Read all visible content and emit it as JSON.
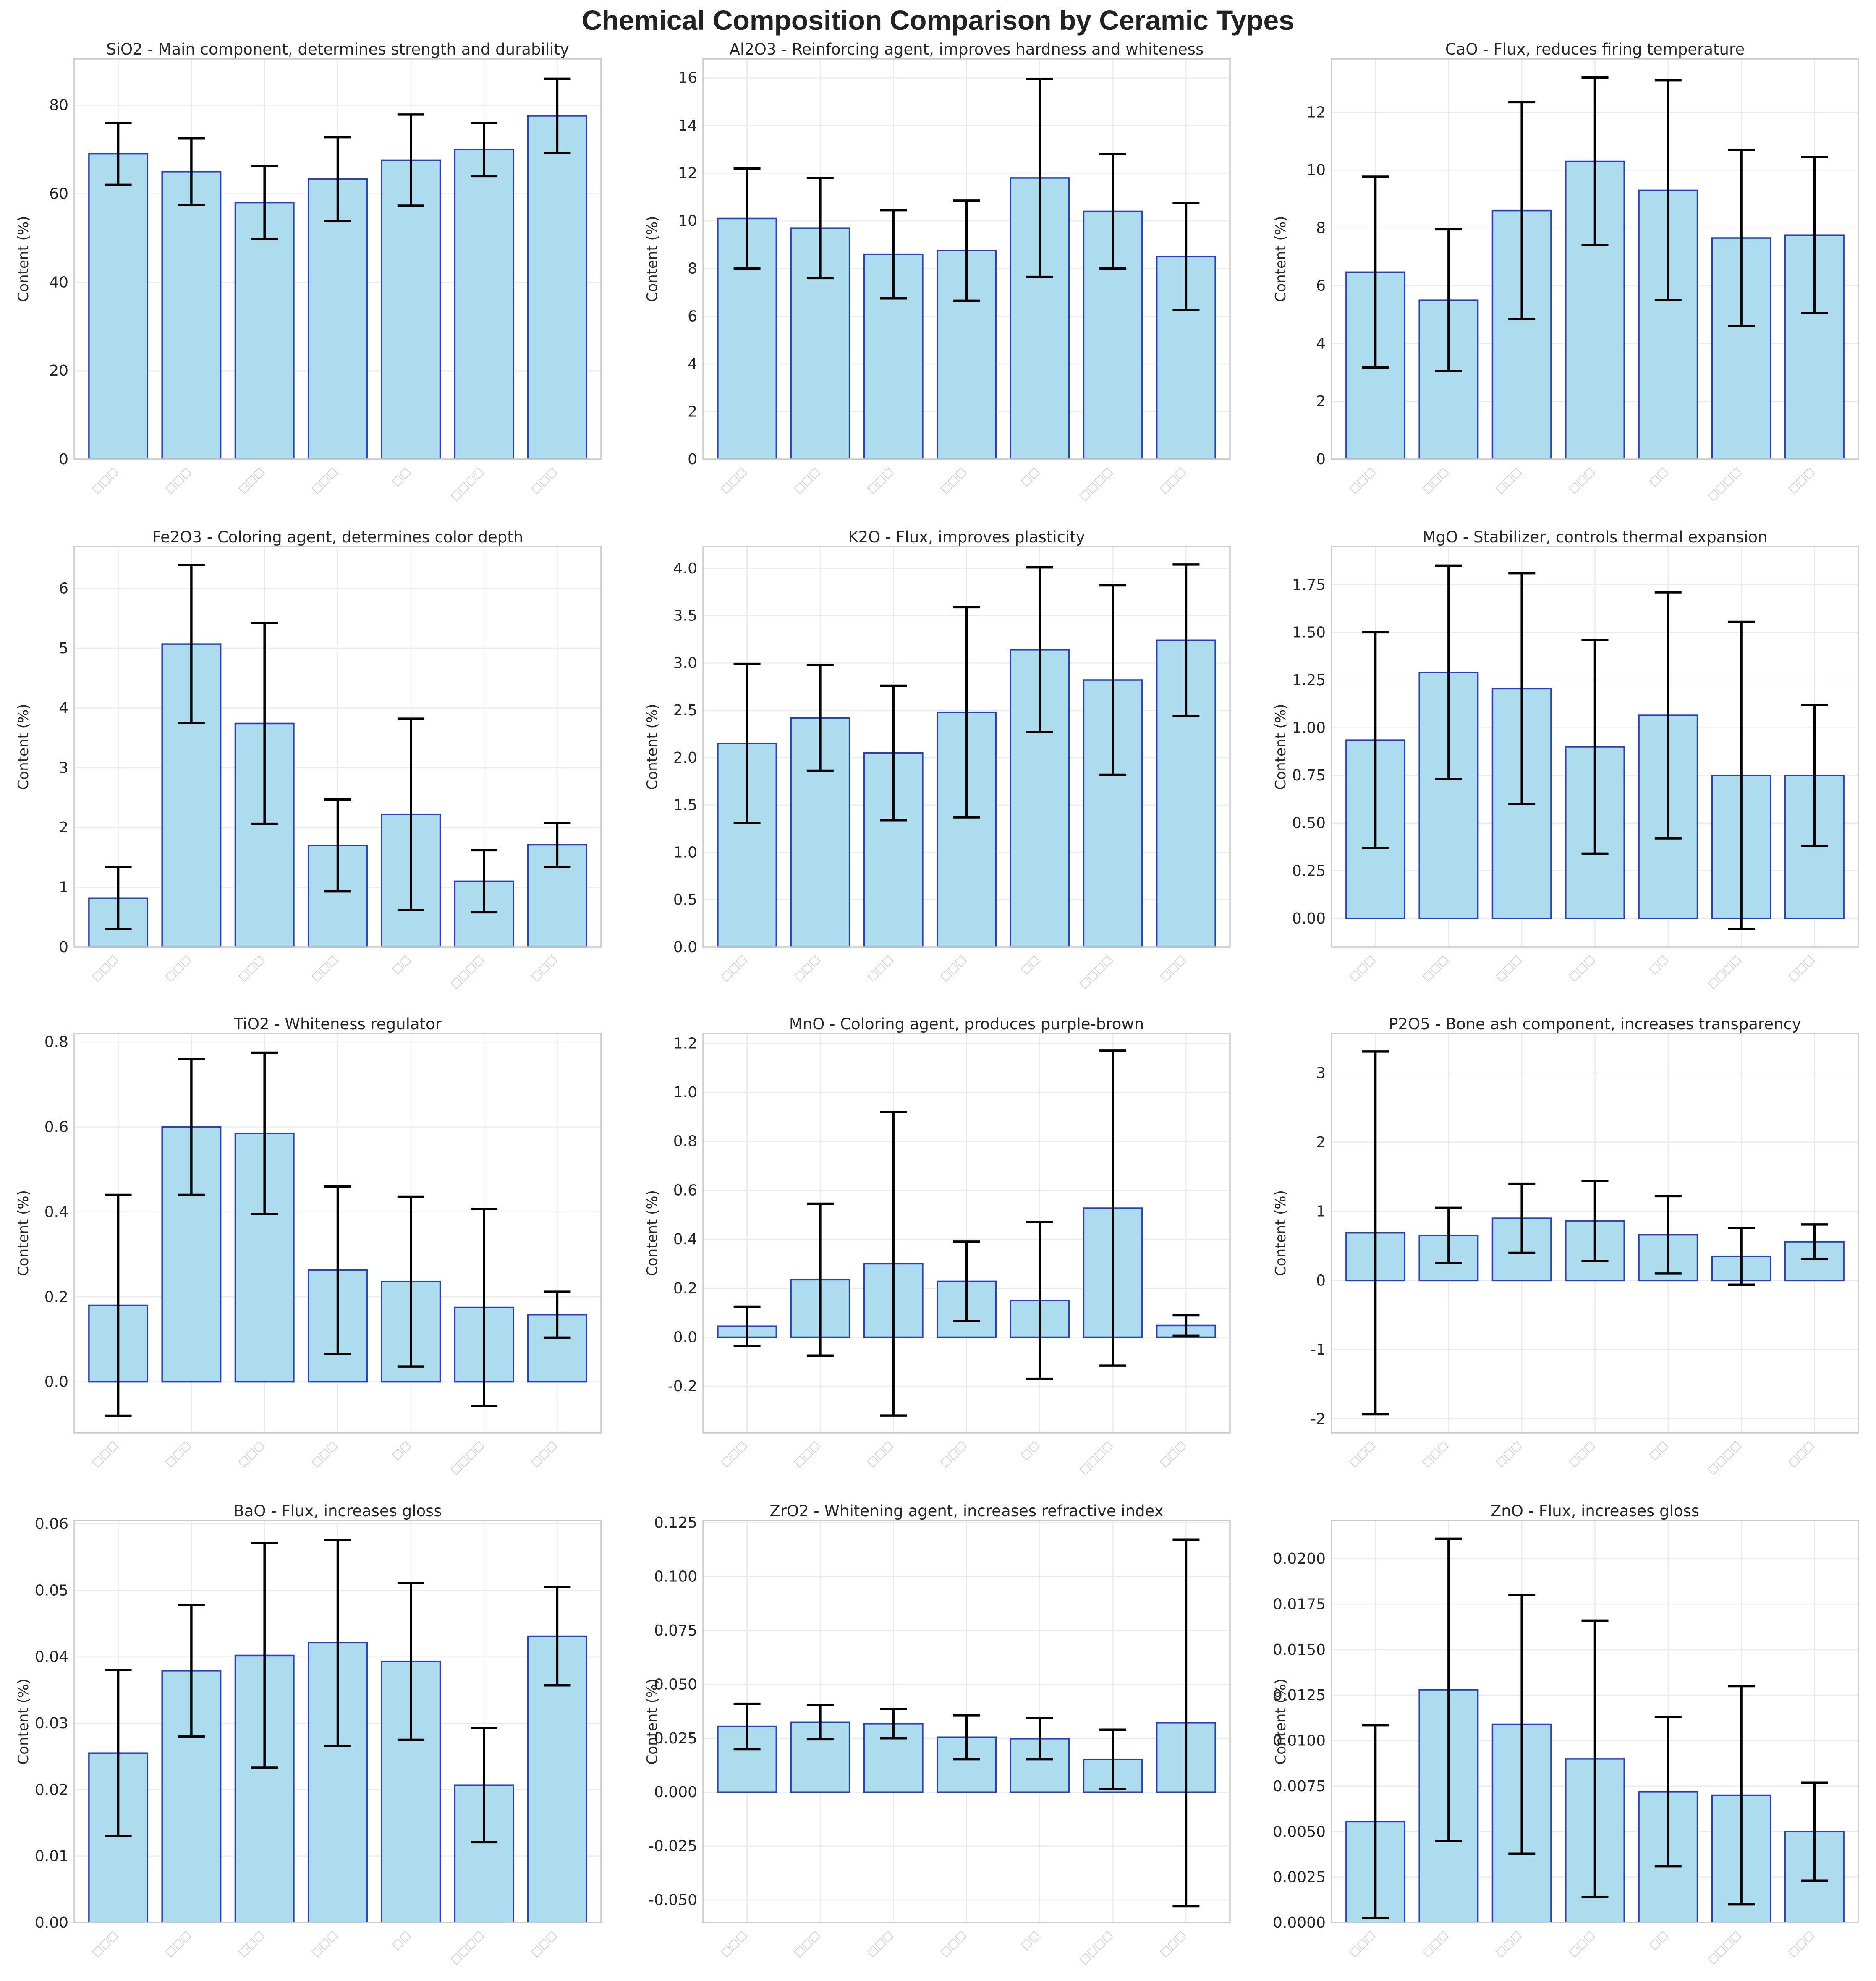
{
  "figure": {
    "title": "Chemical Composition Comparison by Ceramic Types",
    "bar_fill": "#ADDCEF",
    "bar_edge": "#2B3FB8",
    "error_color": "#000000",
    "grid_color": "#EBEBEB",
    "frame_color": "#CCCCCC"
  },
  "chart_data": [
    {
      "type": "bar",
      "title": "SiO2 - Main component, determines strength and durability",
      "ylabel": "Content (%)",
      "categories": [
        "□□□",
        "□□□",
        "□□□",
        "□□□",
        "□□",
        "□□□□",
        "□□□"
      ],
      "ylim": [
        0,
        90.5
      ],
      "yticks": [
        0,
        20,
        40,
        60,
        80
      ],
      "ytick_labels": [
        "0",
        "20",
        "40",
        "60",
        "80"
      ],
      "values": [
        69.0,
        65.0,
        58.0,
        63.3,
        67.6,
        70.0,
        77.6
      ],
      "errors": [
        7.0,
        7.5,
        8.2,
        9.5,
        10.3,
        6.0,
        8.4
      ]
    },
    {
      "type": "bar",
      "title": "Al2O3 - Reinforcing agent, improves hardness and whiteness",
      "ylabel": "Content (%)",
      "categories": [
        "□□□",
        "□□□",
        "□□□",
        "□□□",
        "□□",
        "□□□□",
        "□□□"
      ],
      "ylim": [
        0,
        16.8
      ],
      "yticks": [
        0,
        2,
        4,
        6,
        8,
        10,
        12,
        14,
        16
      ],
      "ytick_labels": [
        "0",
        "2",
        "4",
        "6",
        "8",
        "10",
        "12",
        "14",
        "16"
      ],
      "values": [
        10.1,
        9.7,
        8.6,
        8.75,
        11.8,
        10.4,
        8.5
      ],
      "errors": [
        2.1,
        2.1,
        1.85,
        2.1,
        4.15,
        2.4,
        2.25
      ]
    },
    {
      "type": "bar",
      "title": "CaO - Flux, reduces firing temperature",
      "ylabel": "Content (%)",
      "categories": [
        "□□□",
        "□□□",
        "□□□",
        "□□□",
        "□□",
        "□□□□",
        "□□□"
      ],
      "ylim": [
        0,
        13.85
      ],
      "yticks": [
        0,
        2,
        4,
        6,
        8,
        10,
        12
      ],
      "ytick_labels": [
        "0",
        "2",
        "4",
        "6",
        "8",
        "10",
        "12"
      ],
      "values": [
        6.47,
        5.5,
        8.6,
        10.3,
        9.3,
        7.65,
        7.75
      ],
      "errors": [
        3.3,
        2.45,
        3.75,
        2.9,
        3.8,
        3.05,
        2.7
      ]
    },
    {
      "type": "bar",
      "title": "Fe2O3 - Coloring agent, determines color depth",
      "ylabel": "Content (%)",
      "categories": [
        "□□□",
        "□□□",
        "□□□",
        "□□□",
        "□□",
        "□□□□",
        "□□□"
      ],
      "ylim": [
        0,
        6.7
      ],
      "yticks": [
        0,
        1,
        2,
        3,
        4,
        5,
        6
      ],
      "ytick_labels": [
        "0",
        "1",
        "2",
        "3",
        "4",
        "5",
        "6"
      ],
      "values": [
        0.82,
        5.07,
        3.74,
        1.7,
        2.22,
        1.1,
        1.71
      ],
      "errors": [
        0.52,
        1.32,
        1.68,
        0.77,
        1.6,
        0.52,
        0.37
      ]
    },
    {
      "type": "bar",
      "title": "K2O - Flux, improves plasticity",
      "ylabel": "Content (%)",
      "categories": [
        "□□□",
        "□□□",
        "□□□",
        "□□□",
        "□□",
        "□□□□",
        "□□□"
      ],
      "ylim": [
        0,
        4.23
      ],
      "yticks": [
        0,
        0.5,
        1,
        1.5,
        2,
        2.5,
        3,
        3.5,
        4
      ],
      "ytick_labels": [
        "0.0",
        "0.5",
        "1.0",
        "1.5",
        "2.0",
        "2.5",
        "3.0",
        "3.5",
        "4.0"
      ],
      "values": [
        2.15,
        2.42,
        2.05,
        2.48,
        3.14,
        2.82,
        3.24
      ],
      "errors": [
        0.84,
        0.56,
        0.71,
        1.11,
        0.87,
        1.0,
        0.8
      ]
    },
    {
      "type": "bar",
      "title": "MgO - Stabilizer, controls thermal expansion",
      "ylabel": "Content (%)",
      "categories": [
        "□□□",
        "□□□",
        "□□□",
        "□□□",
        "□□",
        "□□□□",
        "□□□"
      ],
      "ylim": [
        -0.15,
        1.95
      ],
      "yticks": [
        0,
        0.25,
        0.5,
        0.75,
        1,
        1.25,
        1.5,
        1.75
      ],
      "ytick_labels": [
        "0.00",
        "0.25",
        "0.50",
        "0.75",
        "1.00",
        "1.25",
        "1.50",
        "1.75"
      ],
      "values": [
        0.935,
        1.29,
        1.205,
        0.9,
        1.065,
        0.75,
        0.75
      ],
      "errors": [
        0.565,
        0.56,
        0.605,
        0.56,
        0.645,
        0.805,
        0.37
      ]
    },
    {
      "type": "bar",
      "title": "TiO2 - Whiteness regulator",
      "ylabel": "Content (%)",
      "categories": [
        "□□□",
        "□□□",
        "□□□",
        "□□□",
        "□□",
        "□□□□",
        "□□□"
      ],
      "ylim": [
        -0.12,
        0.82
      ],
      "yticks": [
        0,
        0.2,
        0.4,
        0.6,
        0.8
      ],
      "ytick_labels": [
        "0.0",
        "0.2",
        "0.4",
        "0.6",
        "0.8"
      ],
      "values": [
        0.18,
        0.6,
        0.585,
        0.263,
        0.236,
        0.175,
        0.158
      ],
      "errors": [
        0.26,
        0.16,
        0.19,
        0.197,
        0.2,
        0.232,
        0.054
      ]
    },
    {
      "type": "bar",
      "title": "MnO - Coloring agent, produces purple-brown",
      "ylabel": "Content (%)",
      "categories": [
        "□□□",
        "□□□",
        "□□□",
        "□□□",
        "□□",
        "□□□□",
        "□□□"
      ],
      "ylim": [
        -0.39,
        1.24
      ],
      "yticks": [
        -0.2,
        0,
        0.2,
        0.4,
        0.6,
        0.8,
        1.0,
        1.2
      ],
      "ytick_labels": [
        "-0.2",
        "0.0",
        "0.2",
        "0.4",
        "0.6",
        "0.8",
        "1.0",
        "1.2"
      ],
      "values": [
        0.045,
        0.235,
        0.3,
        0.228,
        0.15,
        0.527,
        0.048
      ],
      "errors": [
        0.08,
        0.31,
        0.62,
        0.162,
        0.32,
        0.643,
        0.041
      ]
    },
    {
      "type": "bar",
      "title": "P2O5 - Bone ash component, increases transparency",
      "ylabel": "Content (%)",
      "categories": [
        "□□□",
        "□□□",
        "□□□",
        "□□□",
        "□□",
        "□□□□",
        "□□□"
      ],
      "ylim": [
        -2.2,
        3.57
      ],
      "yticks": [
        -2,
        -1,
        0,
        1,
        2,
        3
      ],
      "ytick_labels": [
        "-2",
        "-1",
        "0",
        "1",
        "2",
        "3"
      ],
      "values": [
        0.69,
        0.65,
        0.9,
        0.86,
        0.66,
        0.35,
        0.56
      ],
      "errors": [
        2.62,
        0.4,
        0.5,
        0.58,
        0.56,
        0.41,
        0.25
      ]
    },
    {
      "type": "bar",
      "title": "BaO - Flux, increases gloss",
      "ylabel": "Content (%)",
      "categories": [
        "□□□",
        "□□□",
        "□□□",
        "□□□",
        "□□",
        "□□□□",
        "□□□"
      ],
      "ylim": [
        0,
        0.0605
      ],
      "yticks": [
        0,
        0.01,
        0.02,
        0.03,
        0.04,
        0.05,
        0.06
      ],
      "ytick_labels": [
        "0.00",
        "0.01",
        "0.02",
        "0.03",
        "0.04",
        "0.05",
        "0.06"
      ],
      "values": [
        0.0255,
        0.0379,
        0.0402,
        0.0421,
        0.0393,
        0.0207,
        0.0431
      ],
      "errors": [
        0.0125,
        0.0099,
        0.0169,
        0.0155,
        0.0118,
        0.0086,
        0.0074
      ]
    },
    {
      "type": "bar",
      "title": "ZrO2 - Whitening agent, increases refractive index",
      "ylabel": "Content (%)",
      "categories": [
        "□□□",
        "□□□",
        "□□□",
        "□□□",
        "□□",
        "□□□□",
        "□□□"
      ],
      "ylim": [
        -0.0605,
        0.126
      ],
      "yticks": [
        -0.05,
        -0.025,
        0,
        0.025,
        0.05,
        0.075,
        0.1,
        0.125
      ],
      "ytick_labels": [
        "-0.050",
        "-0.025",
        "0.000",
        "0.025",
        "0.050",
        "0.075",
        "0.100",
        "0.125"
      ],
      "values": [
        0.0305,
        0.0325,
        0.0318,
        0.0255,
        0.0248,
        0.0152,
        0.0322
      ],
      "errors": [
        0.0105,
        0.008,
        0.0068,
        0.0102,
        0.0095,
        0.0138,
        0.085
      ]
    },
    {
      "type": "bar",
      "title": "ZnO - Flux, increases gloss",
      "ylabel": "Content (%)",
      "categories": [
        "□□□",
        "□□□",
        "□□□",
        "□□□",
        "□□",
        "□□□□",
        "□□□"
      ],
      "ylim": [
        0,
        0.0221
      ],
      "yticks": [
        0,
        0.0025,
        0.005,
        0.0075,
        0.01,
        0.0125,
        0.015,
        0.0175,
        0.02
      ],
      "ytick_labels": [
        "0.0000",
        "0.0025",
        "0.0050",
        "0.0075",
        "0.0100",
        "0.0125",
        "0.0150",
        "0.0175",
        "0.0200"
      ],
      "values": [
        0.00555,
        0.0128,
        0.0109,
        0.009,
        0.0072,
        0.007,
        0.005
      ],
      "errors": [
        0.0053,
        0.0083,
        0.0071,
        0.0076,
        0.0041,
        0.006,
        0.0027
      ]
    }
  ]
}
